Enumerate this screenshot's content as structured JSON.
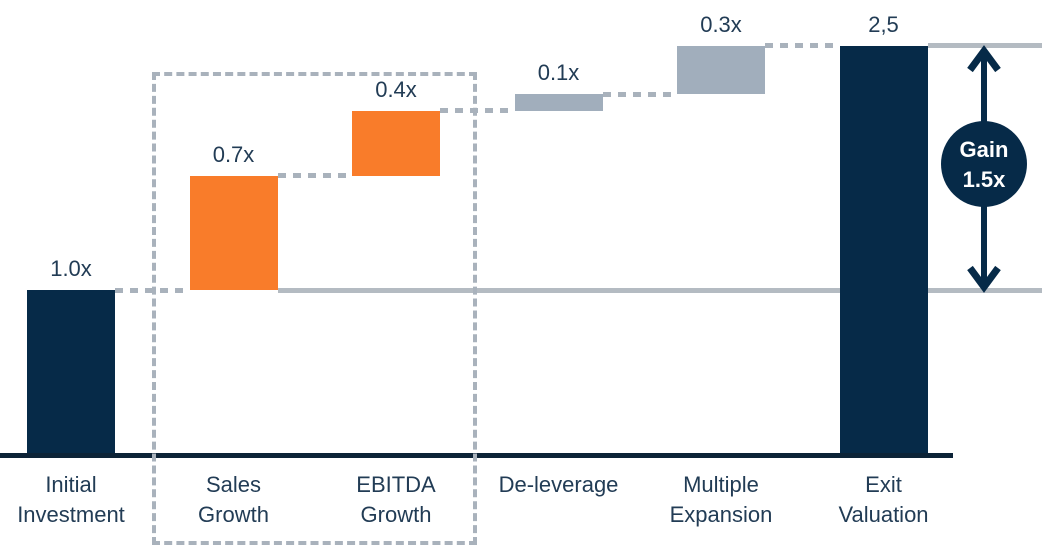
{
  "chart_data": {
    "type": "bar",
    "subtype": "waterfall",
    "title": "",
    "xlabel": "",
    "ylabel": "",
    "ylim": [
      0,
      2.75
    ],
    "grid": false,
    "legend": "none",
    "categories": [
      "Initial Investment",
      "Sales Growth",
      "EBITDA Growth",
      "De-leverage",
      "Multiple Expansion",
      "Exit Valuation"
    ],
    "bars": [
      {
        "label": "Initial Investment",
        "label_lines": [
          "Initial",
          "Investment"
        ],
        "value_label": "1.0x",
        "delta": 1.0,
        "start": 0,
        "end": 1.0,
        "color": "navy",
        "role": "initial"
      },
      {
        "label": "Sales Growth",
        "label_lines": [
          "Sales",
          "Growth"
        ],
        "value_label": "0.7x",
        "delta": 0.7,
        "start": 1.0,
        "end": 1.7,
        "color": "orange",
        "role": "increase"
      },
      {
        "label": "EBITDA Growth",
        "label_lines": [
          "EBITDA",
          "Growth"
        ],
        "value_label": "0.4x",
        "delta": 0.4,
        "start": 1.7,
        "end": 2.1,
        "color": "orange",
        "role": "increase"
      },
      {
        "label": "De-leverage",
        "label_lines": [
          "De-leverage"
        ],
        "value_label": "0.1x",
        "delta": 0.1,
        "start": 2.1,
        "end": 2.2,
        "color": "gray",
        "role": "increase"
      },
      {
        "label": "Multiple Expansion",
        "label_lines": [
          "Multiple",
          "Expansion"
        ],
        "value_label": "0.3x",
        "delta": 0.3,
        "start": 2.2,
        "end": 2.5,
        "color": "gray",
        "role": "increase"
      },
      {
        "label": "Exit Valuation",
        "label_lines": [
          "Exit",
          "Valuation"
        ],
        "value_label": "2,5",
        "delta": 2.5,
        "start": 0,
        "end": 2.5,
        "color": "navy",
        "role": "total"
      }
    ],
    "reference_lines": [
      {
        "level": 1.0,
        "style": "solid",
        "after_bar": 1
      },
      {
        "level": 2.5,
        "style": "solid",
        "after_bar": 5
      }
    ],
    "highlight_box_categories": [
      "Sales Growth",
      "EBITDA Growth"
    ]
  },
  "annotation": {
    "gain_line1": "Gain",
    "gain_line2": "1.5x",
    "gain_value": 1.5
  },
  "colors": {
    "navy": "#062a48",
    "orange": "#f97c2a",
    "gray": "#a1aebc",
    "dash": "#a9b2bc",
    "light_line": "#b4bbc2",
    "axis": "#0c2337",
    "text": "#223c55",
    "circle_text": "#ffffff"
  }
}
